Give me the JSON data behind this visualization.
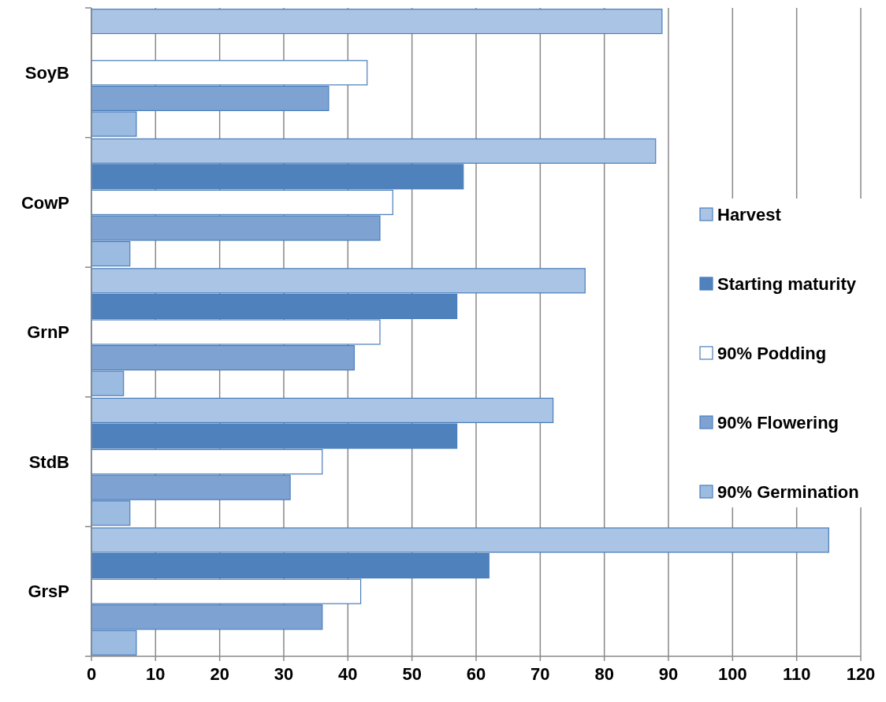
{
  "chart_data": {
    "type": "bar",
    "orientation": "horizontal",
    "categories": [
      "SoyB",
      "CowP",
      "GrnP",
      "StdB",
      "GrsP"
    ],
    "series": [
      {
        "name": "Harvest",
        "color": "#a9c4e4",
        "values": [
          89,
          88,
          77,
          72,
          115
        ]
      },
      {
        "name": "Starting maturity",
        "color": "#4f81bd",
        "values": [
          null,
          58,
          57,
          57,
          62
        ]
      },
      {
        "name": "90% Podding",
        "color": "#ffffff",
        "values": [
          43,
          47,
          45,
          36,
          42
        ]
      },
      {
        "name": "90% Flowering",
        "color": "#7ea3d3",
        "values": [
          37,
          45,
          41,
          31,
          36
        ]
      },
      {
        "name": "90% Germination",
        "color": "#9bbbe0",
        "values": [
          7,
          6,
          5,
          6,
          7
        ]
      }
    ],
    "xlim": [
      0,
      120
    ],
    "xticks": [
      0,
      10,
      20,
      30,
      40,
      50,
      60,
      70,
      80,
      90,
      100,
      110,
      120
    ],
    "grid": "x",
    "legend": "right"
  }
}
